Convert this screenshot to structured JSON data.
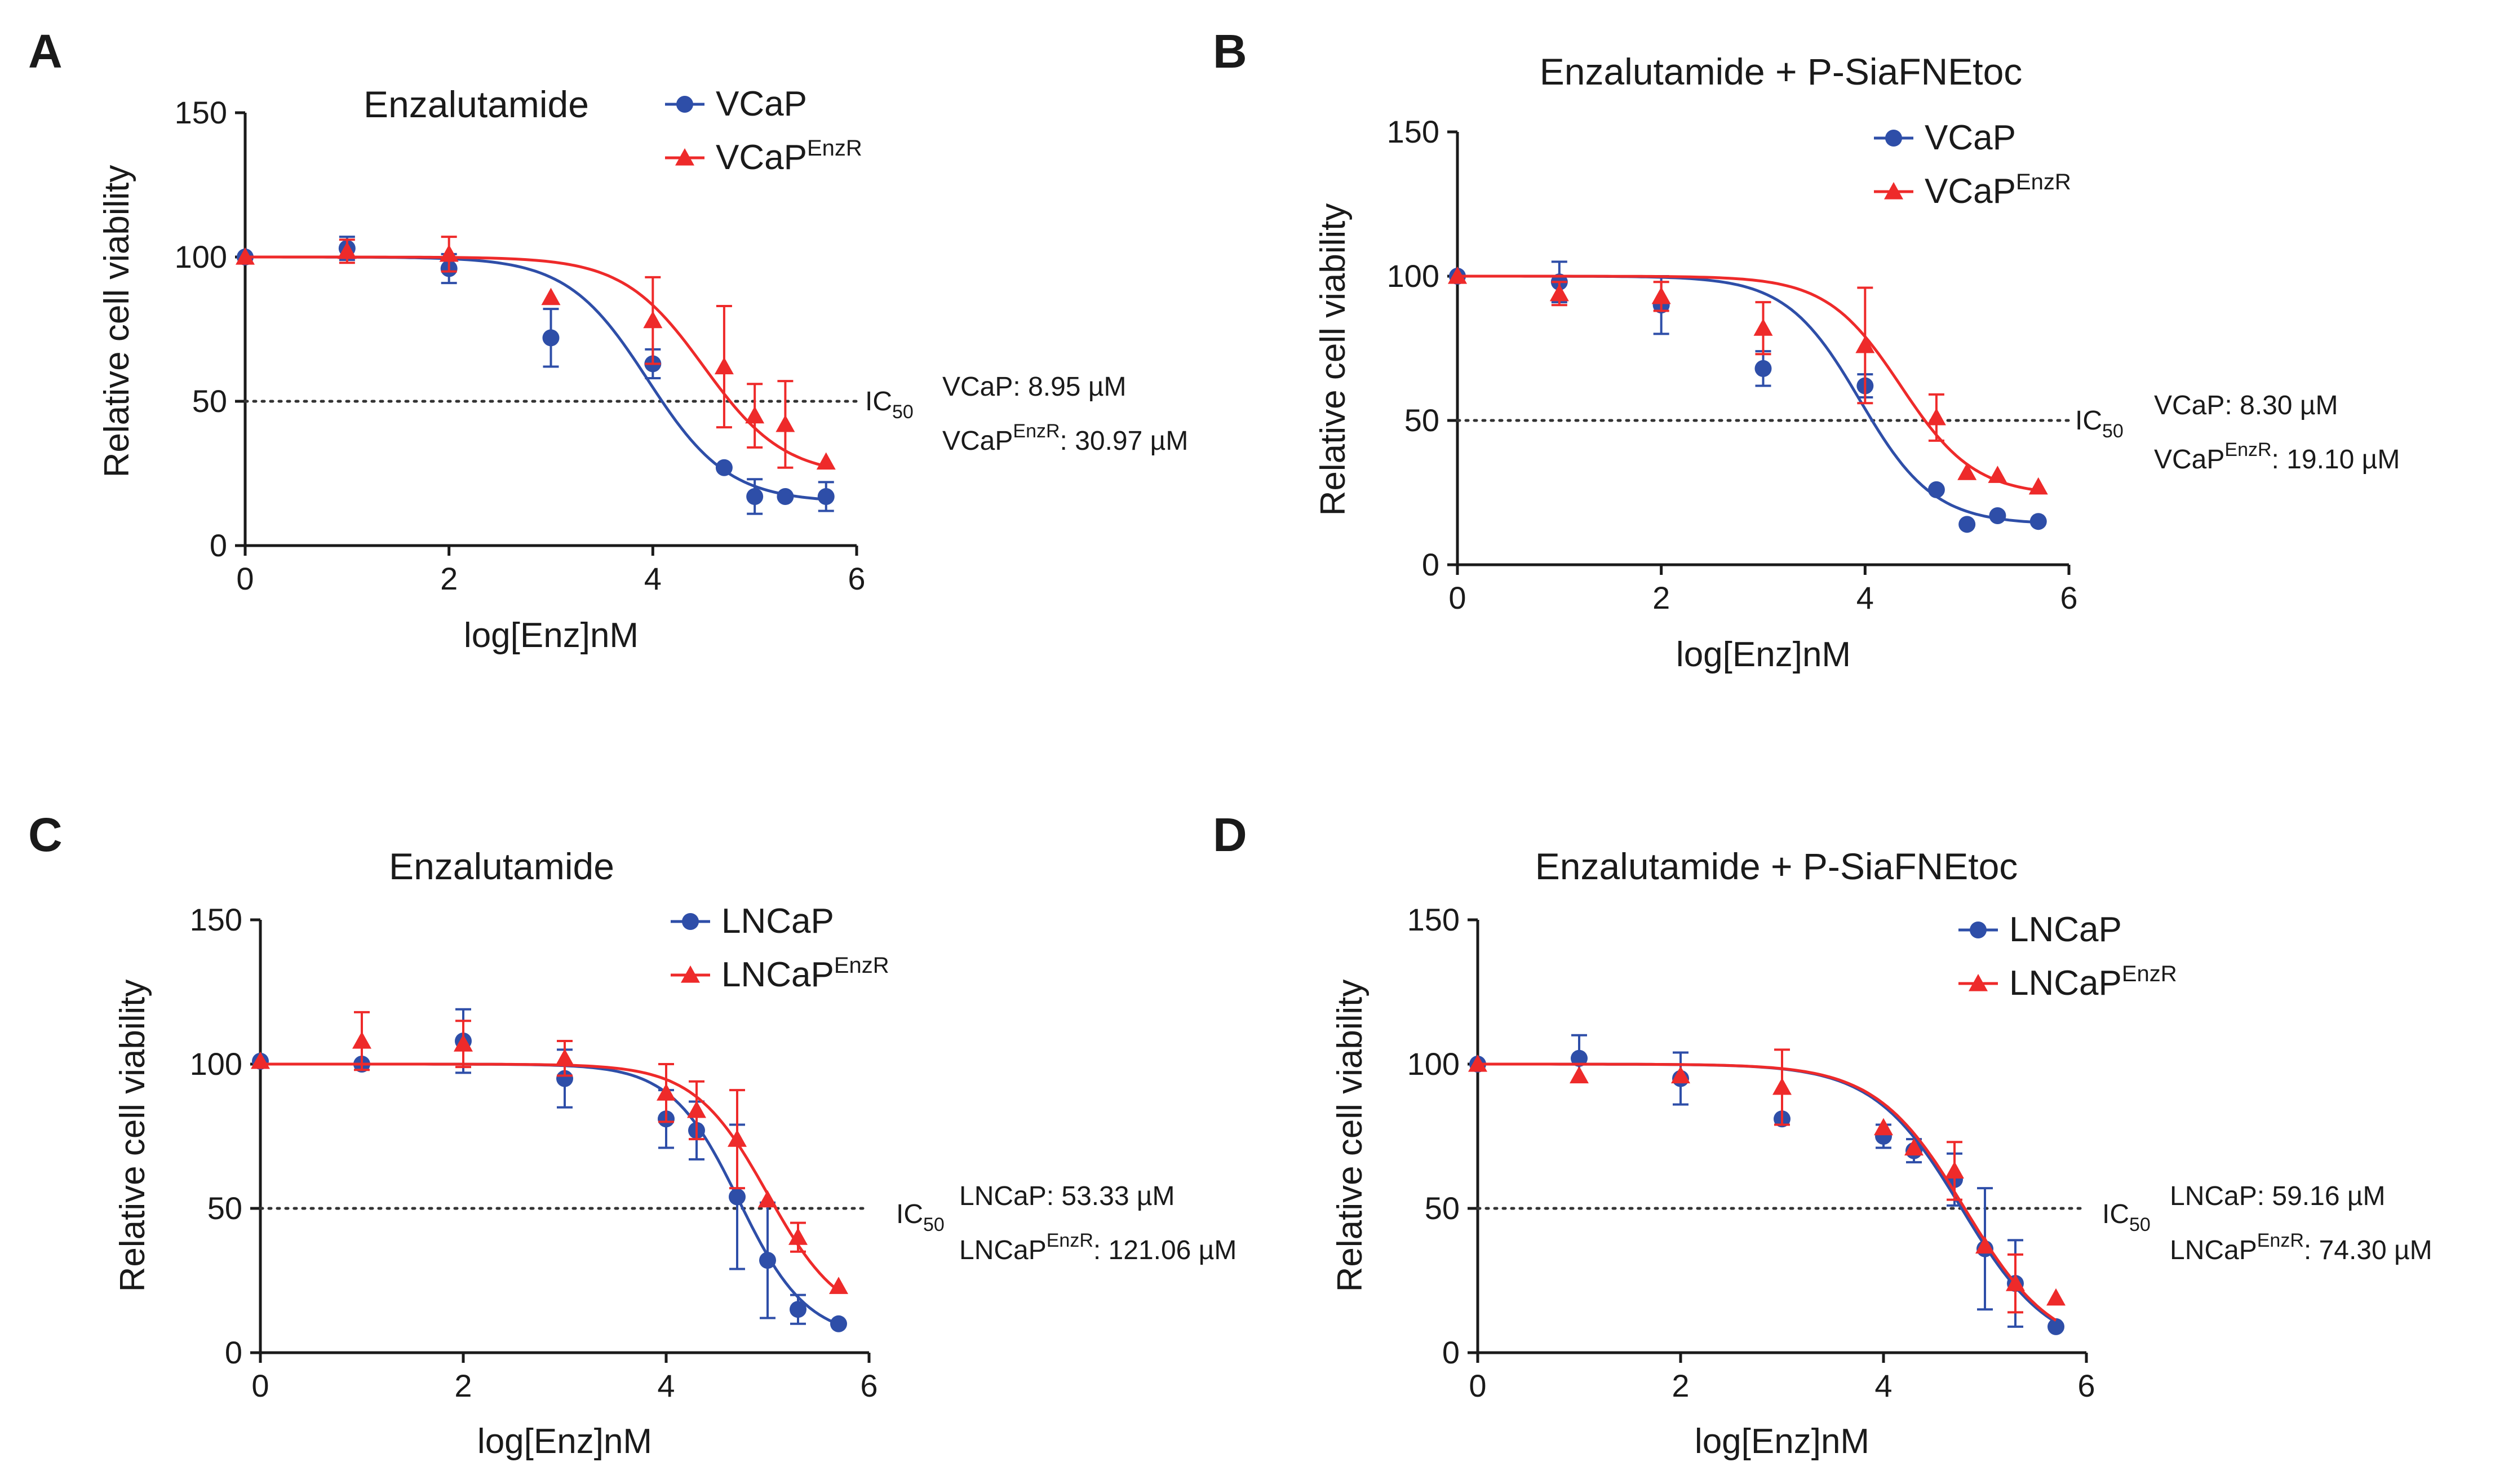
{
  "figure": {
    "panels": [
      {
        "letter": "A",
        "chart_data": {
          "type": "line",
          "title": "Enzalutamide",
          "xlabel": "log[Enz]nM",
          "ylabel": "Relative cell viability",
          "xlim": [
            0,
            6
          ],
          "ylim": [
            0,
            150
          ],
          "xticks": [
            "0",
            "2",
            "4",
            "6"
          ],
          "yticks": [
            "0",
            "50",
            "100",
            "150"
          ],
          "reference_line": {
            "y": 50,
            "style": "dotted",
            "label": "IC",
            "label_sub": "50"
          },
          "ic50": [
            {
              "name": "VCaP",
              "sup": "",
              "text": ": 8.95 µM"
            },
            {
              "name": "VCaP",
              "sup": "EnzR",
              "text": ": 30.97 µM"
            }
          ],
          "legend_position": "top-right",
          "series": [
            {
              "name": "VCaP",
              "sup": "",
              "color": "#2e4ea8",
              "marker": "circle",
              "x": [
                0,
                1,
                2,
                3,
                4,
                4.7,
                5,
                5.3,
                5.7
              ],
              "y": [
                100,
                103,
                96,
                72,
                63,
                27,
                17,
                17,
                17
              ],
              "err": [
                0,
                4,
                5,
                10,
                5,
                0,
                6,
                0,
                5
              ],
              "fit_logIC50": 3.95,
              "fit_bottom": 15,
              "fit_hill": 1.1
            },
            {
              "name": "VCaP",
              "sup": "EnzR",
              "color": "#ee2a2a",
              "marker": "triangle",
              "x": [
                0,
                1,
                2,
                3,
                4,
                4.7,
                5,
                5.3,
                5.7
              ],
              "y": [
                100,
                102,
                101,
                86,
                78,
                62,
                45,
                42,
                29
              ],
              "err": [
                0,
                4,
                6,
                0,
                15,
                21,
                11,
                15,
                0
              ],
              "fit_logIC50": 4.5,
              "fit_bottom": 24,
              "fit_hill": 1.1
            }
          ]
        }
      },
      {
        "letter": "B",
        "chart_data": {
          "type": "line",
          "title": "Enzalutamide + P-SiaFNEtoc",
          "xlabel": "log[Enz]nM",
          "ylabel": "Relative cell viability",
          "xlim": [
            0,
            6
          ],
          "ylim": [
            0,
            150
          ],
          "xticks": [
            "0",
            "2",
            "4",
            "6"
          ],
          "yticks": [
            "0",
            "50",
            "100",
            "150"
          ],
          "reference_line": {
            "y": 50,
            "style": "dotted",
            "label": "IC",
            "label_sub": "50"
          },
          "ic50": [
            {
              "name": "VCaP",
              "sup": "",
              "text": ": 8.30 µM"
            },
            {
              "name": "VCaP",
              "sup": "EnzR",
              "text": ": 19.10 µM"
            }
          ],
          "legend_position": "top-right",
          "series": [
            {
              "name": "VCaP",
              "sup": "",
              "color": "#2e4ea8",
              "marker": "circle",
              "x": [
                0,
                1,
                2,
                3,
                4,
                4.7,
                5,
                5.3,
                5.7
              ],
              "y": [
                100,
                98,
                90,
                68,
                62,
                26,
                14,
                17,
                15
              ],
              "err": [
                0,
                7,
                10,
                6,
                4,
                0,
                0,
                0,
                0
              ],
              "fit_logIC50": 3.95,
              "fit_bottom": 14,
              "fit_hill": 1.2
            },
            {
              "name": "VCaP",
              "sup": "EnzR",
              "color": "#ee2a2a",
              "marker": "triangle",
              "x": [
                0,
                1,
                2,
                3,
                4,
                4.7,
                5,
                5.3,
                5.7
              ],
              "y": [
                100,
                94,
                93,
                82,
                76,
                51,
                32,
                31,
                27
              ],
              "err": [
                0,
                4,
                5,
                9,
                20,
                8,
                0,
                0,
                0
              ],
              "fit_logIC50": 4.35,
              "fit_bottom": 24,
              "fit_hill": 1.2
            }
          ]
        }
      },
      {
        "letter": "C",
        "chart_data": {
          "type": "line",
          "title": "Enzalutamide",
          "xlabel": "log[Enz]nM",
          "ylabel": "Relative cell viability",
          "xlim": [
            0,
            6
          ],
          "ylim": [
            0,
            150
          ],
          "xticks": [
            "0",
            "2",
            "4",
            "6"
          ],
          "yticks": [
            "0",
            "50",
            "100",
            "150"
          ],
          "reference_line": {
            "y": 50,
            "style": "dotted",
            "label": "IC",
            "label_sub": "50"
          },
          "ic50": [
            {
              "name": "LNCaP",
              "sup": "",
              "text": ": 53.33 µM"
            },
            {
              "name": "LNCaP",
              "sup": "EnzR",
              "text": ": 121.06 µM"
            }
          ],
          "legend_position": "top-right",
          "series": [
            {
              "name": "LNCaP",
              "sup": "",
              "color": "#2e4ea8",
              "marker": "circle",
              "x": [
                0,
                1,
                2,
                3,
                4,
                4.3,
                4.7,
                5,
                5.3,
                5.7
              ],
              "y": [
                101,
                100,
                108,
                95,
                81,
                77,
                54,
                32,
                15,
                10
              ],
              "err": [
                0,
                0,
                11,
                10,
                10,
                10,
                25,
                20,
                5,
                0
              ],
              "fit_logIC50": 4.72,
              "fit_bottom": 5,
              "fit_hill": 1.3
            },
            {
              "name": "LNCaP",
              "sup": "EnzR",
              "color": "#ee2a2a",
              "marker": "triangle",
              "x": [
                0,
                1,
                2,
                3,
                4,
                4.3,
                4.7,
                5,
                5.3,
                5.7
              ],
              "y": [
                101,
                108,
                107,
                102,
                90,
                84,
                74,
                53,
                40,
                23
              ],
              "err": [
                0,
                10,
                8,
                6,
                10,
                10,
                17,
                0,
                5,
                0
              ],
              "fit_logIC50": 5.0,
              "fit_bottom": 10,
              "fit_hill": 1.2
            }
          ]
        }
      },
      {
        "letter": "D",
        "chart_data": {
          "type": "line",
          "title": "Enzalutamide + P-SiaFNEtoc",
          "xlabel": "log[Enz]nM",
          "ylabel": "Relative cell viability",
          "xlim": [
            0,
            6
          ],
          "ylim": [
            0,
            150
          ],
          "xticks": [
            "0",
            "2",
            "4",
            "6"
          ],
          "yticks": [
            "0",
            "50",
            "100",
            "150"
          ],
          "reference_line": {
            "y": 50,
            "style": "dotted",
            "label": "IC",
            "label_sub": "50"
          },
          "ic50": [
            {
              "name": "LNCaP",
              "sup": "",
              "text": ": 59.16 µM"
            },
            {
              "name": "LNCaP",
              "sup": "EnzR",
              "text": ": 74.30 µM"
            }
          ],
          "legend_position": "top-right",
          "series": [
            {
              "name": "LNCaP",
              "sup": "",
              "color": "#2e4ea8",
              "marker": "circle",
              "x": [
                0,
                1,
                2,
                3,
                4,
                4.3,
                4.7,
                5,
                5.3,
                5.7
              ],
              "y": [
                100,
                102,
                95,
                81,
                75,
                70,
                60,
                36,
                24,
                9
              ],
              "err": [
                0,
                8,
                9,
                0,
                4,
                4,
                9,
                21,
                15,
                0
              ],
              "fit_logIC50": 4.77,
              "fit_bottom": 0,
              "fit_hill": 1.0
            },
            {
              "name": "LNCaP",
              "sup": "EnzR",
              "color": "#ee2a2a",
              "marker": "triangle",
              "x": [
                0,
                1,
                2,
                3,
                4,
                4.3,
                4.7,
                5,
                5.3,
                5.7
              ],
              "y": [
                100,
                96,
                96,
                92,
                78,
                71,
                63,
                37,
                24,
                19
              ],
              "err": [
                0,
                0,
                0,
                13,
                0,
                0,
                10,
                0,
                10,
                0
              ],
              "fit_logIC50": 4.8,
              "fit_bottom": 0,
              "fit_hill": 1.0
            }
          ]
        }
      }
    ]
  }
}
